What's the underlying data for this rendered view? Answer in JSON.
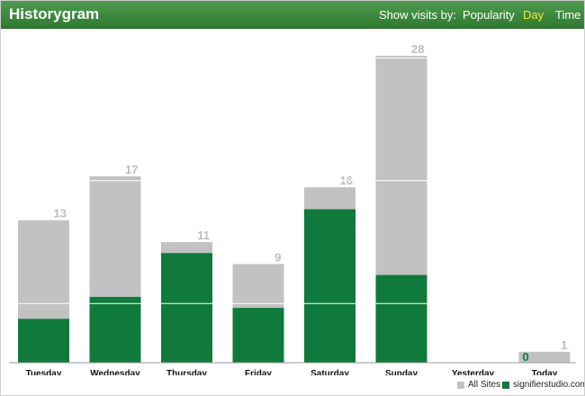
{
  "header": {
    "title": "Historygram",
    "show_label": "Show visits by:",
    "nav": [
      {
        "label": "Popularity",
        "active": false
      },
      {
        "label": "Day",
        "active": true
      },
      {
        "label": "Time",
        "active": false
      }
    ]
  },
  "colors": {
    "all_sites": "#c2c2c2",
    "site": "#0f7a3c",
    "all_label": "#bdbdbd",
    "site_label": "#0f7a3c",
    "active_nav": "#f2ea3a"
  },
  "chart_data": {
    "type": "bar",
    "categories": [
      "Tuesday",
      "Wednesday",
      "Thursday",
      "Friday",
      "Saturday",
      "Sunday",
      "Yesterday",
      "Today"
    ],
    "series": [
      {
        "name": "All Sites",
        "values": [
          13,
          17,
          11,
          9,
          16,
          28,
          null,
          1
        ]
      },
      {
        "name": "signifierstudio.com",
        "values": [
          4,
          6,
          10,
          5,
          14,
          8,
          null,
          0
        ]
      }
    ],
    "ylim": [
      0,
      28
    ],
    "grid": true,
    "legend": "bottom-right"
  },
  "legend": {
    "all_sites": "All Sites",
    "site": "signifierstudio.com"
  }
}
